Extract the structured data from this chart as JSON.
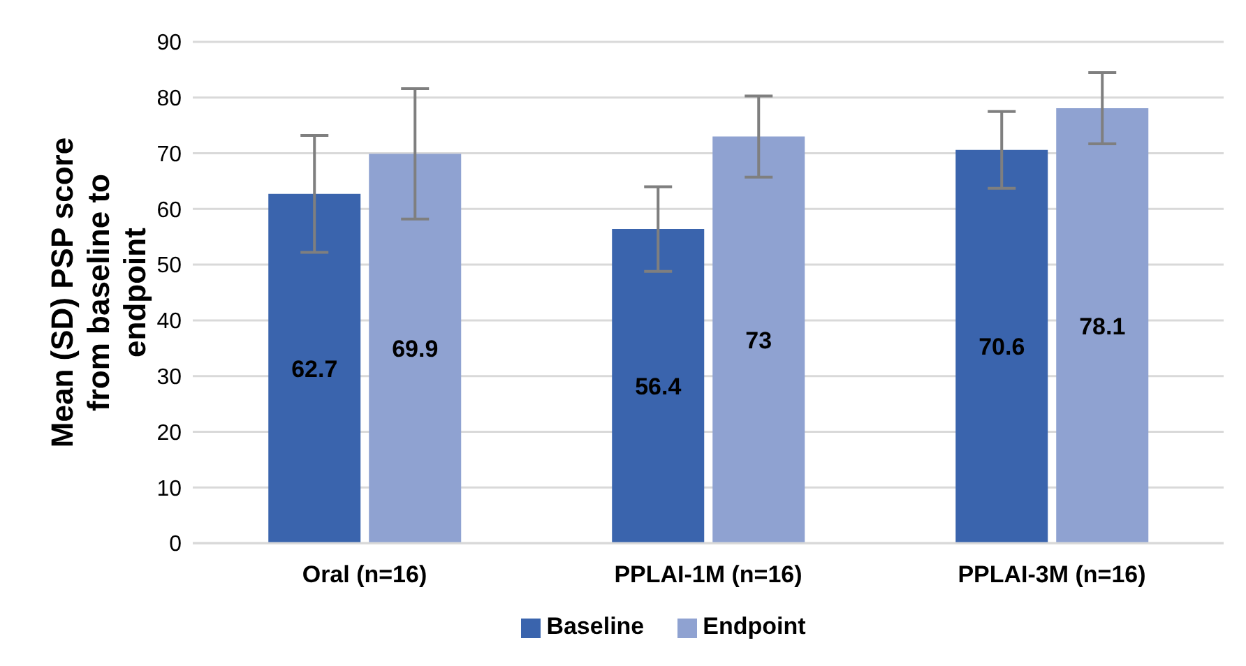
{
  "chart_data": {
    "type": "bar",
    "ylabel": "Mean (SD) PSP score from baseline to endpoint",
    "categories": [
      "Oral (n=16)",
      "PPLAI-1M (n=16)",
      "PPLAI-3M (n=16)"
    ],
    "series": [
      {
        "name": "Baseline",
        "color": "#3a64ad",
        "values": [
          62.7,
          56.4,
          70.6
        ],
        "errors": [
          10.5,
          7.6,
          6.9
        ]
      },
      {
        "name": "Endpoint",
        "color": "#8fa2d1",
        "values": [
          69.9,
          73,
          78.1
        ],
        "errors": [
          11.7,
          7.3,
          6.4
        ]
      }
    ],
    "ylim": [
      0,
      90
    ],
    "yticks": [
      0,
      10,
      20,
      30,
      40,
      50,
      60,
      70,
      80,
      90
    ],
    "grid": "y",
    "legend": "bottom",
    "data_labels": true
  }
}
